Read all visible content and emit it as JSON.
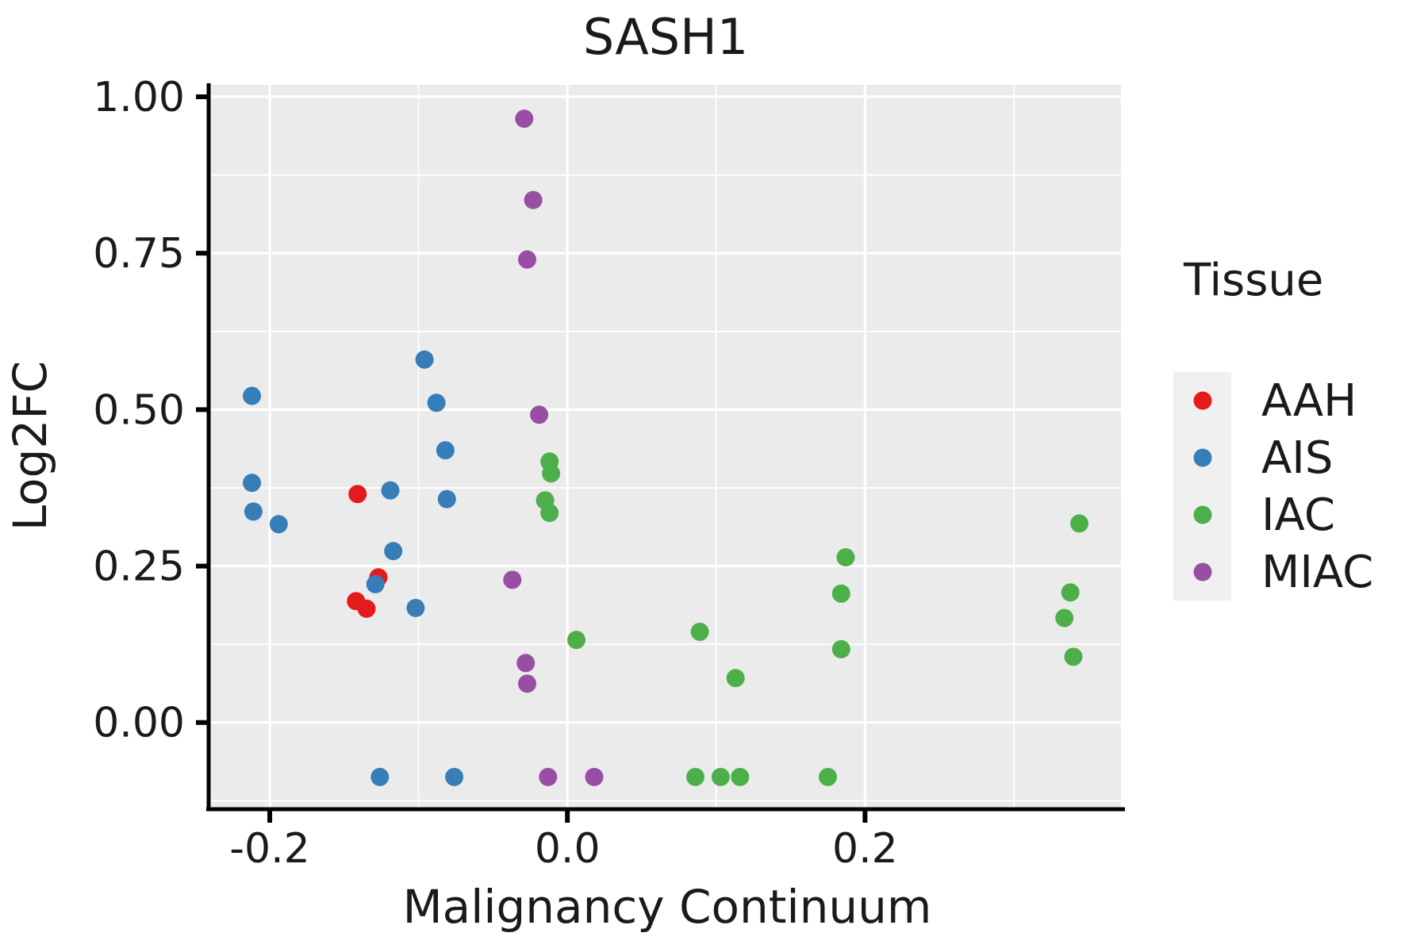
{
  "figure": {
    "title": "SASH1"
  },
  "axes": {
    "x_label": "Malignancy Continuum",
    "y_label": "Log2FC",
    "x_tick_labels": [
      "-0.2",
      "0.0",
      "0.2"
    ],
    "y_tick_labels": [
      "1.00",
      "0.75",
      "0.50",
      "0.25",
      "0.00"
    ]
  },
  "legend": {
    "title": "Tissue",
    "entries": [
      {
        "label": "AAH",
        "color": "#E41A1C"
      },
      {
        "label": "AIS",
        "color": "#377EB8"
      },
      {
        "label": "IAC",
        "color": "#4DAF4A"
      },
      {
        "label": "MIAC",
        "color": "#984EA3"
      }
    ]
  },
  "style": {
    "panel_bg": "#EBEBEB",
    "grid_color": "#FFFFFF",
    "legend_key_bg": "#F0F0F0",
    "axis_color": "#000000",
    "text_color": "#1A1A1A"
  },
  "chart_data": {
    "type": "scatter",
    "title": "SASH1",
    "xlabel": "Malignancy Continuum",
    "ylabel": "Log2FC",
    "xlim": [
      -0.24,
      0.372
    ],
    "ylim": [
      -0.136,
      1.019
    ],
    "x_ticks": [
      -0.2,
      0.0,
      0.2
    ],
    "x_tick_labels": [
      "-0.2",
      "0.0",
      "0.2"
    ],
    "x_minor_ticks": [
      -0.1,
      0.1,
      0.3
    ],
    "y_ticks": [
      1.0,
      0.75,
      0.5,
      0.25,
      0.0
    ],
    "y_tick_labels": [
      "1.00",
      "0.75",
      "0.50",
      "0.25",
      "0.00"
    ],
    "y_minor_ticks": [
      -0.125,
      0.125,
      0.375,
      0.625,
      0.875
    ],
    "grid": true,
    "legend_title": "Tissue",
    "legend_position": "right",
    "series": [
      {
        "name": "AAH",
        "color": "#E41A1C",
        "points": [
          [
            -0.141,
            0.365
          ],
          [
            -0.127,
            0.232
          ],
          [
            -0.142,
            0.194
          ],
          [
            -0.135,
            0.182
          ]
        ]
      },
      {
        "name": "AIS",
        "color": "#377EB8",
        "points": [
          [
            -0.212,
            0.522
          ],
          [
            -0.212,
            0.383
          ],
          [
            -0.211,
            0.337
          ],
          [
            -0.194,
            0.317
          ],
          [
            -0.119,
            0.371
          ],
          [
            -0.117,
            0.274
          ],
          [
            -0.129,
            0.221
          ],
          [
            -0.102,
            0.183
          ],
          [
            -0.096,
            0.58
          ],
          [
            -0.088,
            0.511
          ],
          [
            -0.082,
            0.435
          ],
          [
            -0.081,
            0.357
          ],
          [
            -0.126,
            -0.087
          ],
          [
            -0.076,
            -0.087
          ]
        ]
      },
      {
        "name": "IAC",
        "color": "#4DAF4A",
        "points": [
          [
            -0.012,
            0.417
          ],
          [
            -0.011,
            0.398
          ],
          [
            -0.015,
            0.355
          ],
          [
            -0.012,
            0.335
          ],
          [
            0.006,
            0.132
          ],
          [
            0.089,
            0.145
          ],
          [
            0.113,
            0.071
          ],
          [
            0.187,
            0.264
          ],
          [
            0.184,
            0.206
          ],
          [
            0.184,
            0.117
          ],
          [
            0.344,
            0.318
          ],
          [
            0.338,
            0.208
          ],
          [
            0.334,
            0.167
          ],
          [
            0.34,
            0.105
          ],
          [
            0.086,
            -0.087
          ],
          [
            0.103,
            -0.087
          ],
          [
            0.116,
            -0.087
          ],
          [
            0.175,
            -0.087
          ]
        ]
      },
      {
        "name": "MIAC",
        "color": "#984EA3",
        "points": [
          [
            -0.029,
            0.965
          ],
          [
            -0.023,
            0.835
          ],
          [
            -0.027,
            0.74
          ],
          [
            -0.019,
            0.492
          ],
          [
            -0.037,
            0.228
          ],
          [
            -0.028,
            0.095
          ],
          [
            -0.027,
            0.062
          ],
          [
            -0.013,
            -0.087
          ],
          [
            0.018,
            -0.087
          ]
        ]
      }
    ]
  }
}
